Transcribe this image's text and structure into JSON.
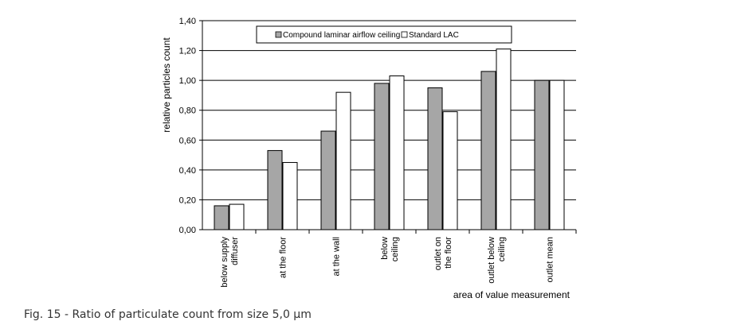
{
  "chart_data": {
    "type": "bar",
    "title": "",
    "xlabel": "area of value measurement",
    "ylabel": "relative particles count",
    "ylim": [
      0,
      1.4
    ],
    "yticks": [
      "0,00",
      "0,20",
      "0,40",
      "0,60",
      "0,80",
      "1,00",
      "1,20",
      "1,40"
    ],
    "grid": true,
    "legend_position": "top-center",
    "categories": [
      "below supply diffuser",
      "at the floor",
      "at the wall",
      "below ceiling",
      "outlet on the floor",
      "outlet below ceiling",
      "outlet mean"
    ],
    "series": [
      {
        "name": "Compound laminar airflow ceiling",
        "color": "#a6a6a6",
        "values": [
          0.16,
          0.53,
          0.66,
          0.98,
          0.95,
          1.06,
          1.0
        ]
      },
      {
        "name": "Standard LAC",
        "color": "#ffffff",
        "values": [
          0.17,
          0.45,
          0.92,
          1.03,
          0.79,
          1.21,
          1.0
        ]
      }
    ]
  },
  "caption": "Fig. 15 - Ratio of particulate count from size 5,0 µm"
}
